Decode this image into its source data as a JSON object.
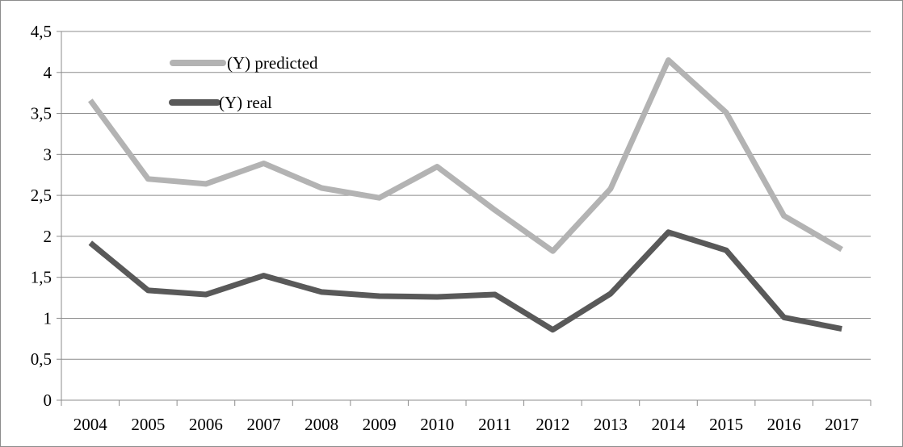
{
  "chart_data": {
    "type": "line",
    "categories": [
      "2004",
      "2005",
      "2006",
      "2007",
      "2008",
      "2009",
      "2010",
      "2011",
      "2012",
      "2013",
      "2014",
      "2015",
      "2016",
      "2017"
    ],
    "y_tick_labels": [
      "0",
      "0,5",
      "1",
      "1,5",
      "2",
      "2,5",
      "3",
      "3,5",
      "4",
      "4,5"
    ],
    "ylim": [
      0,
      4.5
    ],
    "grid": true,
    "legend_placement": "top-left (inside plot)",
    "series": [
      {
        "name": "(Y) predicted",
        "color": "#b3b3b3",
        "values": [
          3.66,
          2.7,
          2.64,
          2.89,
          2.59,
          2.47,
          2.85,
          2.32,
          1.82,
          2.58,
          4.15,
          3.51,
          2.25,
          1.84
        ]
      },
      {
        "name": "(Y) real",
        "color": "#595959",
        "values": [
          1.92,
          1.34,
          1.29,
          1.52,
          1.32,
          1.27,
          1.26,
          1.29,
          0.86,
          1.3,
          2.05,
          1.83,
          1.01,
          0.87
        ]
      }
    ]
  }
}
